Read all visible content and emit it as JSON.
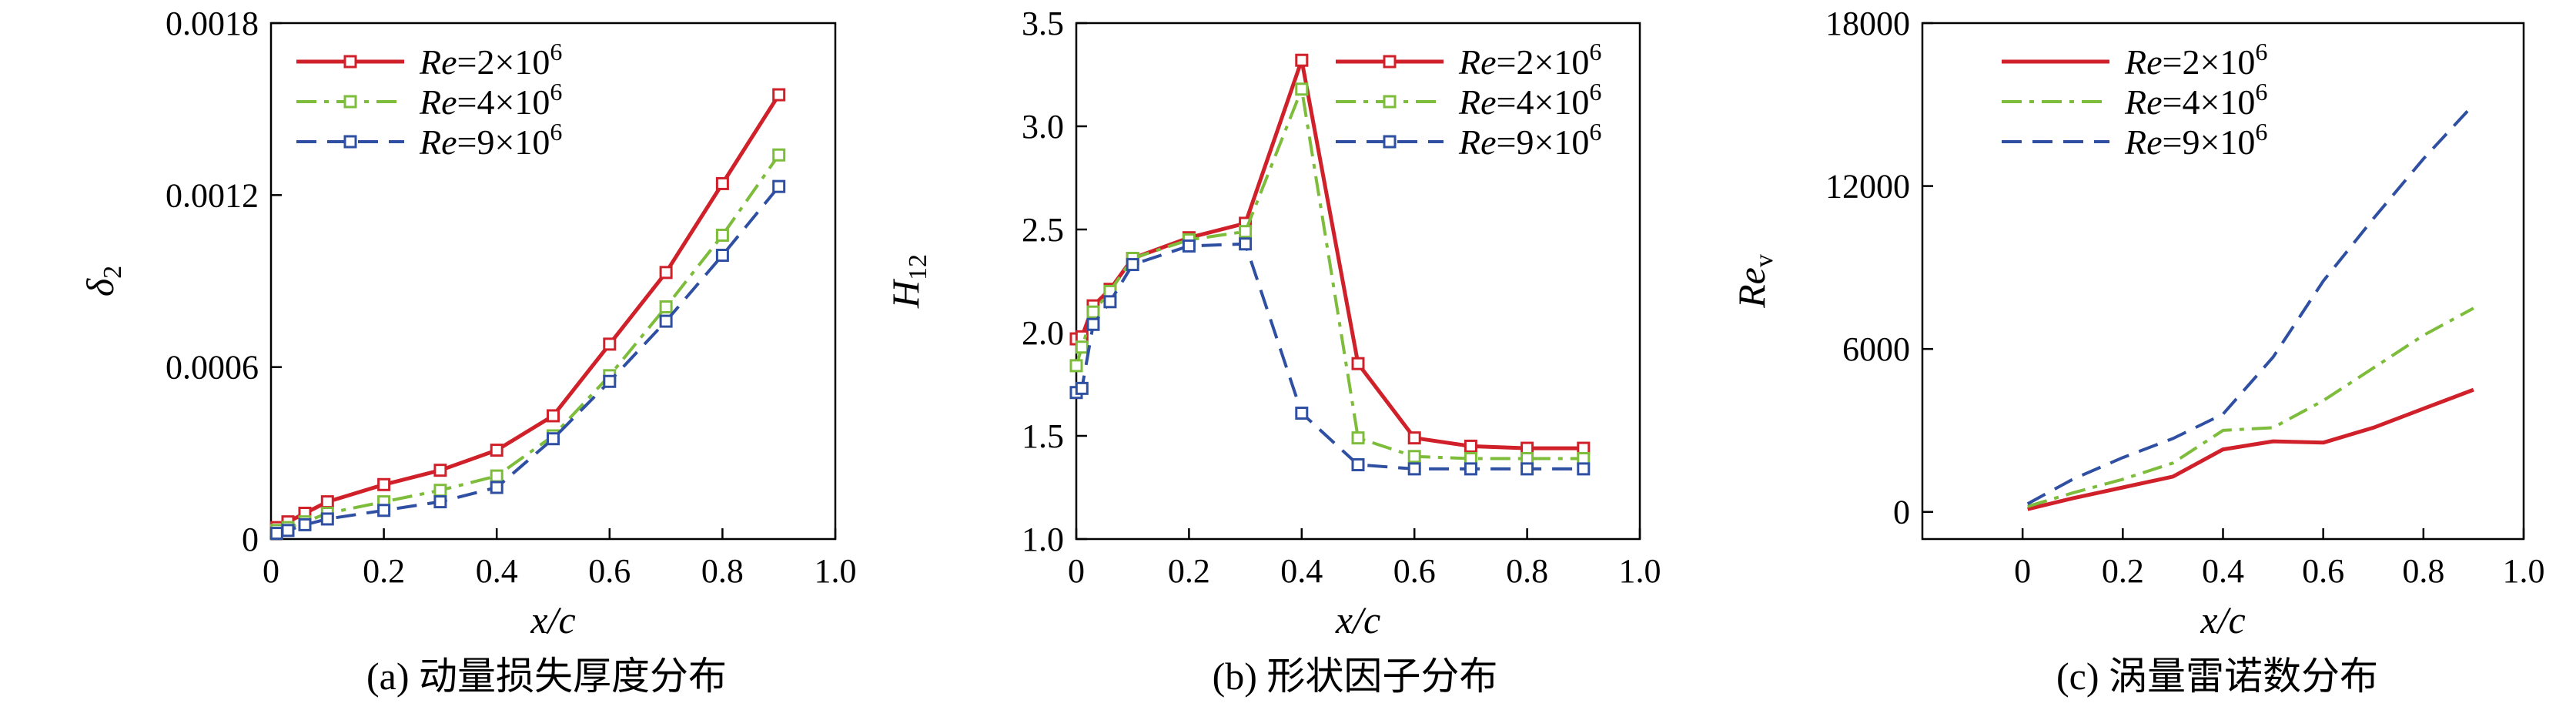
{
  "colors": {
    "re2": "#d0202a",
    "re4": "#7dbd3b",
    "re9": "#2e4fa2"
  },
  "chart_data": [
    {
      "type": "line",
      "caption": "(a) 动量损失厚度分布",
      "xlabel": "x/c",
      "ylabel": "δ",
      "ylabel_sub": "2",
      "xlim": [
        0,
        1.0
      ],
      "ylim": [
        0,
        0.0018
      ],
      "xticks": [
        0,
        0.2,
        0.4,
        0.6,
        0.8,
        1.0
      ],
      "xtick_labels": [
        "0",
        "0.2",
        "0.4",
        "0.6",
        "0.8",
        "1.0"
      ],
      "yticks": [
        0,
        0.0006,
        0.0012,
        0.0018
      ],
      "ytick_labels": [
        "0",
        "0.0006",
        "0.0012",
        "0.0018"
      ],
      "legend_position": "top-left",
      "markers": true,
      "series": [
        {
          "name": "Re=2×10",
          "sup": "6",
          "style": "solid",
          "color_key": "re2",
          "x": [
            0.01,
            0.03,
            0.06,
            0.1,
            0.2,
            0.3,
            0.4,
            0.5,
            0.6,
            0.7,
            0.8,
            0.9
          ],
          "y": [
            4e-05,
            6e-05,
            9e-05,
            0.00013,
            0.00019,
            0.00024,
            0.00031,
            0.00043,
            0.00068,
            0.00093,
            0.00124,
            0.00155
          ]
        },
        {
          "name": "Re=4×10",
          "sup": "6",
          "style": "dashdot",
          "color_key": "re4",
          "x": [
            0.01,
            0.03,
            0.06,
            0.1,
            0.2,
            0.3,
            0.4,
            0.5,
            0.6,
            0.7,
            0.8,
            0.9
          ],
          "y": [
            3e-05,
            4e-05,
            6e-05,
            9e-05,
            0.00013,
            0.00017,
            0.00022,
            0.00036,
            0.00057,
            0.00081,
            0.00106,
            0.00134
          ]
        },
        {
          "name": "Re=9×10",
          "sup": "6",
          "style": "dashed",
          "color_key": "re9",
          "x": [
            0.01,
            0.03,
            0.06,
            0.1,
            0.2,
            0.3,
            0.4,
            0.5,
            0.6,
            0.7,
            0.8,
            0.9
          ],
          "y": [
            2e-05,
            3e-05,
            5e-05,
            7e-05,
            0.0001,
            0.00013,
            0.00018,
            0.00035,
            0.00055,
            0.00076,
            0.00099,
            0.00123
          ]
        }
      ]
    },
    {
      "type": "line",
      "caption": "(b) 形状因子分布",
      "xlabel": "x/c",
      "ylabel": "H",
      "ylabel_sub": "12",
      "xlim": [
        0,
        1.0
      ],
      "ylim": [
        1.0,
        3.5
      ],
      "xticks": [
        0,
        0.2,
        0.4,
        0.6,
        0.8,
        1.0
      ],
      "xtick_labels": [
        "0",
        "0.2",
        "0.4",
        "0.6",
        "0.8",
        "1.0"
      ],
      "yticks": [
        1.0,
        1.5,
        2.0,
        2.5,
        3.0,
        3.5
      ],
      "ytick_labels": [
        "1.0",
        "1.5",
        "2.0",
        "2.5",
        "3.0",
        "3.5"
      ],
      "legend_position": "top-right",
      "markers": true,
      "series": [
        {
          "name": "Re=2×10",
          "sup": "6",
          "style": "solid",
          "color_key": "re2",
          "x": [
            0.0,
            0.01,
            0.03,
            0.06,
            0.1,
            0.2,
            0.3,
            0.4,
            0.5,
            0.6,
            0.7,
            0.8,
            0.9
          ],
          "y": [
            1.97,
            1.98,
            2.13,
            2.21,
            2.36,
            2.46,
            2.53,
            3.32,
            1.85,
            1.49,
            1.45,
            1.44,
            1.44
          ]
        },
        {
          "name": "Re=4×10",
          "sup": "6",
          "style": "dashdot",
          "color_key": "re4",
          "x": [
            0.0,
            0.01,
            0.03,
            0.06,
            0.1,
            0.2,
            0.3,
            0.4,
            0.5,
            0.6,
            0.7,
            0.8,
            0.9
          ],
          "y": [
            1.84,
            1.93,
            2.1,
            2.2,
            2.36,
            2.45,
            2.49,
            3.18,
            1.49,
            1.4,
            1.39,
            1.39,
            1.39
          ]
        },
        {
          "name": "Re=9×10",
          "sup": "6",
          "style": "dashed",
          "color_key": "re9",
          "x": [
            0.0,
            0.01,
            0.03,
            0.06,
            0.1,
            0.2,
            0.3,
            0.4,
            0.5,
            0.6,
            0.7,
            0.8,
            0.9
          ],
          "y": [
            1.71,
            1.73,
            2.04,
            2.15,
            2.33,
            2.42,
            2.43,
            1.61,
            1.36,
            1.34,
            1.34,
            1.34,
            1.34
          ]
        }
      ]
    },
    {
      "type": "line",
      "caption": "(c) 涡量雷诺数分布",
      "xlabel": "x/c",
      "ylabel": "Re",
      "ylabel_sub": "v",
      "xlim": [
        -0.2,
        1.0
      ],
      "ylim": [
        -1000,
        18000
      ],
      "xticks": [
        0,
        0.2,
        0.4,
        0.6,
        0.8,
        1.0
      ],
      "xtick_labels": [
        "0",
        "0.2",
        "0.4",
        "0.6",
        "0.8",
        "1.0"
      ],
      "yticks": [
        0,
        6000,
        12000,
        18000
      ],
      "ytick_labels": [
        "0",
        "6000",
        "12000",
        "18000"
      ],
      "legend_position": "top-left",
      "markers": false,
      "series": [
        {
          "name": "Re=2×10",
          "sup": "6",
          "style": "solid",
          "color_key": "re2",
          "x": [
            0.01,
            0.1,
            0.2,
            0.3,
            0.4,
            0.5,
            0.6,
            0.7,
            0.8,
            0.9
          ],
          "y": [
            100,
            500,
            900,
            1300,
            2300,
            2600,
            2550,
            3100,
            3800,
            4500
          ]
        },
        {
          "name": "Re=4×10",
          "sup": "6",
          "style": "dashdot",
          "color_key": "re4",
          "x": [
            0.01,
            0.1,
            0.2,
            0.3,
            0.4,
            0.5,
            0.6,
            0.7,
            0.8,
            0.9
          ],
          "y": [
            200,
            700,
            1200,
            1800,
            3000,
            3100,
            4100,
            5300,
            6500,
            7500
          ]
        },
        {
          "name": "Re=9×10",
          "sup": "6",
          "style": "dashed",
          "color_key": "re9",
          "x": [
            0.01,
            0.1,
            0.2,
            0.3,
            0.4,
            0.5,
            0.6,
            0.7,
            0.8,
            0.9
          ],
          "y": [
            300,
            1200,
            2000,
            2700,
            3600,
            5700,
            8500,
            10800,
            13000,
            15000
          ]
        }
      ]
    }
  ]
}
